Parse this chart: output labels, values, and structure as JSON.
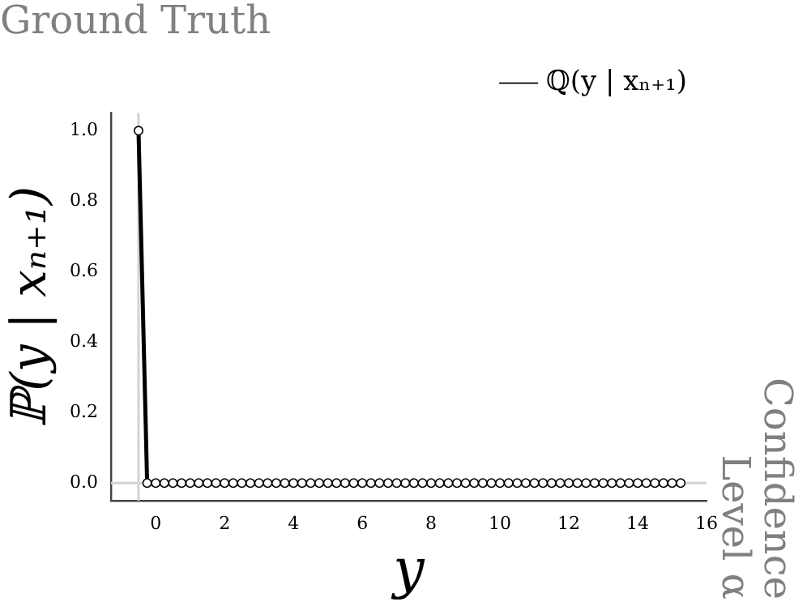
{
  "chart_data": {
    "type": "line",
    "title": "Ground Truth",
    "xlabel": "y",
    "ylabel": "ℙ(y | xₙ₊₁)",
    "annotations": [
      "Confidence Level α"
    ],
    "x": [
      -0.5,
      -0.25,
      0,
      0.25,
      0.5,
      0.75,
      1,
      1.25,
      1.5,
      1.75,
      2,
      2.25,
      2.5,
      2.75,
      3,
      3.25,
      3.5,
      3.75,
      4,
      4.25,
      4.5,
      4.75,
      5,
      5.25,
      5.5,
      5.75,
      6,
      6.25,
      6.5,
      6.75,
      7,
      7.25,
      7.5,
      7.75,
      8,
      8.25,
      8.5,
      8.75,
      9,
      9.25,
      9.5,
      9.75,
      10,
      10.25,
      10.5,
      10.75,
      11,
      11.25,
      11.5,
      11.75,
      12,
      12.25,
      12.5,
      12.75,
      13,
      13.25,
      13.5,
      13.75,
      14,
      14.25,
      14.5,
      14.75,
      15,
      15.25
    ],
    "series": [
      {
        "name": "ℚ(y | xₙ₊₁)",
        "color": "#000000",
        "values": [
          1,
          0,
          0,
          0,
          0,
          0,
          0,
          0,
          0,
          0,
          0,
          0,
          0,
          0,
          0,
          0,
          0,
          0,
          0,
          0,
          0,
          0,
          0,
          0,
          0,
          0,
          0,
          0,
          0,
          0,
          0,
          0,
          0,
          0,
          0,
          0,
          0,
          0,
          0,
          0,
          0,
          0,
          0,
          0,
          0,
          0,
          0,
          0,
          0,
          0,
          0,
          0,
          0,
          0,
          0,
          0,
          0,
          0,
          0,
          0,
          0,
          0,
          0,
          0
        ]
      }
    ],
    "xlim": [
      -1.3,
      16
    ],
    "xticks": [
      0,
      2,
      4,
      6,
      8,
      10,
      12,
      14,
      16
    ],
    "ylim": [
      -0.05,
      1.05
    ],
    "yticks": [
      {
        "value": 0,
        "label": "0.0"
      },
      {
        "value": 0.2,
        "label": "0.2"
      },
      {
        "value": 0.4,
        "label": "0.4"
      },
      {
        "value": 0.6,
        "label": "0.6"
      },
      {
        "value": 0.8,
        "label": "0.8"
      },
      {
        "value": 1,
        "label": "1.0"
      }
    ],
    "ref_lines": [
      {
        "axis": "x",
        "value": -0.5,
        "color": "#d3d3d3"
      },
      {
        "axis": "y",
        "value": 0,
        "color": "#d3d3d3"
      }
    ],
    "grid": false,
    "legend": "top right",
    "marker": "circle",
    "line_style": "solid"
  }
}
